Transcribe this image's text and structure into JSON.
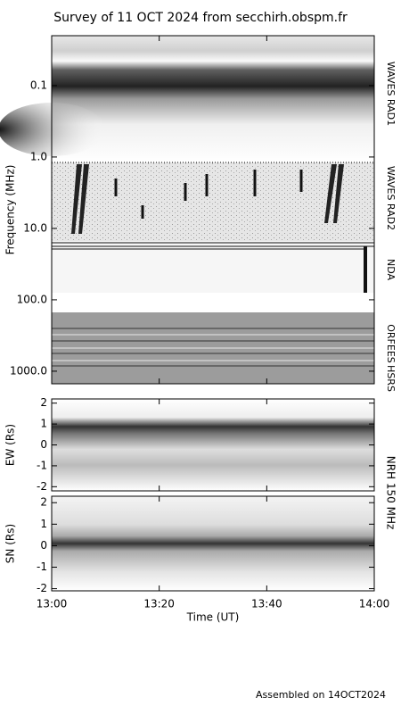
{
  "title": "Survey of 11 OCT 2024 from secchirh.obspm.fr",
  "footer": "Assembled on 14OCT2024",
  "xlabel": "Time (UT)",
  "xticks": [
    "13:00",
    "13:20",
    "13:40",
    "14:00"
  ],
  "chart_data": [
    {
      "type": "spectrogram",
      "ylabel": "Frequency (MHz)",
      "yscale": "log",
      "ylim": [
        0.02,
        1500
      ],
      "yticks": [
        {
          "value": 0.1,
          "label": "0.1"
        },
        {
          "value": 1,
          "label": "1.0"
        },
        {
          "value": 10,
          "label": "10.0"
        },
        {
          "value": 100,
          "label": "100.0"
        },
        {
          "value": 1000,
          "label": "1000.0"
        }
      ],
      "bands": [
        "WAVES RAD1",
        "WAVES RAD2",
        "NDA",
        "ORFEES",
        "HSRS"
      ]
    },
    {
      "type": "spectrogram",
      "ylabel": "EW (Rs)",
      "ylim": [
        -2.2,
        2.2
      ],
      "yticks": [
        -2,
        -1,
        0,
        1,
        2
      ],
      "instrument": "NRH 150 MHz"
    },
    {
      "type": "spectrogram",
      "ylabel": "SN (Rs)",
      "ylim": [
        -2.1,
        2.3
      ],
      "yticks": [
        -2,
        -1,
        0,
        1,
        2
      ]
    }
  ]
}
